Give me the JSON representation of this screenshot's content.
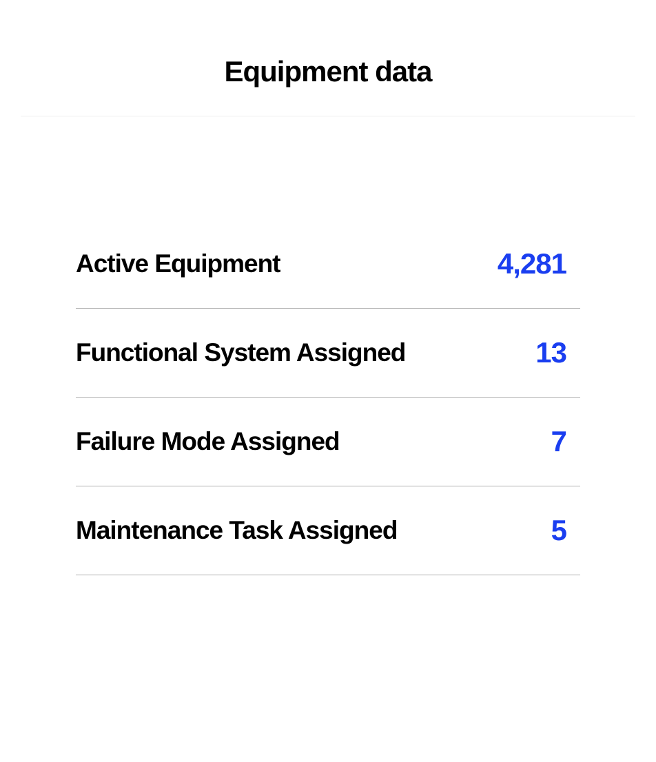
{
  "header": {
    "title": "Equipment data"
  },
  "stats": {
    "rows": [
      {
        "label": "Active Equipment",
        "value": "4,281"
      },
      {
        "label": "Functional System Assigned",
        "value": "13"
      },
      {
        "label": "Failure Mode Assigned",
        "value": "7"
      },
      {
        "label": "Maintenance Task Assigned",
        "value": "5"
      }
    ]
  },
  "styling": {
    "background_color": "#ffffff",
    "header_border_color": "#eeeeee",
    "row_border_color": "#b0b0b0",
    "label_color": "#000000",
    "value_color": "#1a3ef0",
    "header_title_fontsize": 42,
    "label_fontsize": 37,
    "value_fontsize": 42,
    "font_weight": 800
  }
}
